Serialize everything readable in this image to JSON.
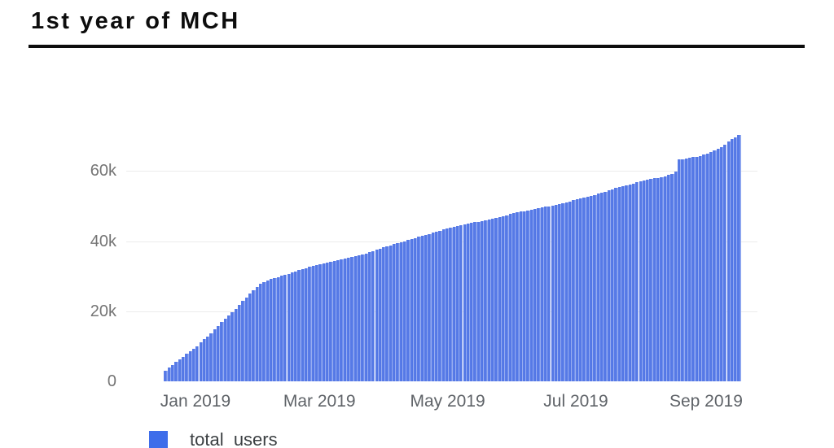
{
  "page": {
    "title": "1st year of MCH"
  },
  "legend": {
    "label": "total_users"
  },
  "colors": {
    "bar_dark": "#5176e5",
    "bar_light": "#97adf1",
    "legend_swatch": "#3e6dea",
    "grid": "#ebebeb",
    "axis_line": "#8a8a8a",
    "y_tick_text": "#757575",
    "x_tick_text": "#5f6368",
    "title_text": "#0d0d0d"
  },
  "chart_data": {
    "type": "bar",
    "title": "1st year of MCH",
    "xlabel": "",
    "ylabel": "",
    "series_name": "total_users",
    "legend_position": "bottom-left-overlay",
    "grid": true,
    "ylim": [
      0,
      72000
    ],
    "y_ticks": [
      0,
      20000,
      40000,
      60000
    ],
    "y_tick_labels": [
      "0",
      "20k",
      "40k",
      "60k"
    ],
    "x_tick_labels": [
      "Jan 2019",
      "Mar 2019",
      "May 2019",
      "Jul 2019",
      "Sep 2019"
    ],
    "x_tick_days": [
      15,
      74,
      135,
      196,
      258
    ],
    "x_range_days": [
      0,
      273
    ],
    "points_note": "users vs day index; day 15 = Jan 2019 tick, day 258 = Sep 2019 tick; values estimated from gridlines",
    "points": [
      {
        "day": 0,
        "users": 3000
      },
      {
        "day": 5,
        "users": 5500
      },
      {
        "day": 10,
        "users": 7800
      },
      {
        "day": 15,
        "users": 10000
      },
      {
        "day": 18,
        "users": 11800
      },
      {
        "day": 21,
        "users": 13300
      },
      {
        "day": 24,
        "users": 15100
      },
      {
        "day": 27,
        "users": 17000
      },
      {
        "day": 30,
        "users": 18600
      },
      {
        "day": 33,
        "users": 20400
      },
      {
        "day": 36,
        "users": 22300
      },
      {
        "day": 39,
        "users": 24300
      },
      {
        "day": 42,
        "users": 26100
      },
      {
        "day": 45,
        "users": 27700
      },
      {
        "day": 48,
        "users": 28700
      },
      {
        "day": 52,
        "users": 29500
      },
      {
        "day": 56,
        "users": 30200
      },
      {
        "day": 60,
        "users": 31000
      },
      {
        "day": 64,
        "users": 31800
      },
      {
        "day": 68,
        "users": 32500
      },
      {
        "day": 72,
        "users": 33100
      },
      {
        "day": 74,
        "users": 33400
      },
      {
        "day": 79,
        "users": 34100
      },
      {
        "day": 84,
        "users": 34800
      },
      {
        "day": 89,
        "users": 35500
      },
      {
        "day": 94,
        "users": 36200
      },
      {
        "day": 99,
        "users": 37200
      },
      {
        "day": 105,
        "users": 38400
      },
      {
        "day": 110,
        "users": 39300
      },
      {
        "day": 115,
        "users": 40200
      },
      {
        "day": 120,
        "users": 41100
      },
      {
        "day": 125,
        "users": 42000
      },
      {
        "day": 130,
        "users": 42900
      },
      {
        "day": 135,
        "users": 43800
      },
      {
        "day": 140,
        "users": 44500
      },
      {
        "day": 145,
        "users": 45100
      },
      {
        "day": 150,
        "users": 45700
      },
      {
        "day": 155,
        "users": 46300
      },
      {
        "day": 160,
        "users": 47000
      },
      {
        "day": 166,
        "users": 48000
      },
      {
        "day": 171,
        "users": 48600
      },
      {
        "day": 176,
        "users": 49100
      },
      {
        "day": 181,
        "users": 49800
      },
      {
        "day": 186,
        "users": 50300
      },
      {
        "day": 191,
        "users": 51100
      },
      {
        "day": 196,
        "users": 52000
      },
      {
        "day": 201,
        "users": 52700
      },
      {
        "day": 206,
        "users": 53500
      },
      {
        "day": 211,
        "users": 54500
      },
      {
        "day": 216,
        "users": 55400
      },
      {
        "day": 221,
        "users": 56200
      },
      {
        "day": 227,
        "users": 57200
      },
      {
        "day": 232,
        "users": 57800
      },
      {
        "day": 237,
        "users": 58400
      },
      {
        "day": 241,
        "users": 59200
      },
      {
        "day": 243,
        "users": 59800
      },
      {
        "day": 244,
        "users": 63200
      },
      {
        "day": 248,
        "users": 63600
      },
      {
        "day": 253,
        "users": 64100
      },
      {
        "day": 258,
        "users": 64900
      },
      {
        "day": 261,
        "users": 65700
      },
      {
        "day": 263,
        "users": 66300
      },
      {
        "day": 265,
        "users": 67000
      },
      {
        "day": 267,
        "users": 67900
      },
      {
        "day": 269,
        "users": 68800
      },
      {
        "day": 271,
        "users": 69500
      },
      {
        "day": 273,
        "users": 70200
      }
    ]
  }
}
